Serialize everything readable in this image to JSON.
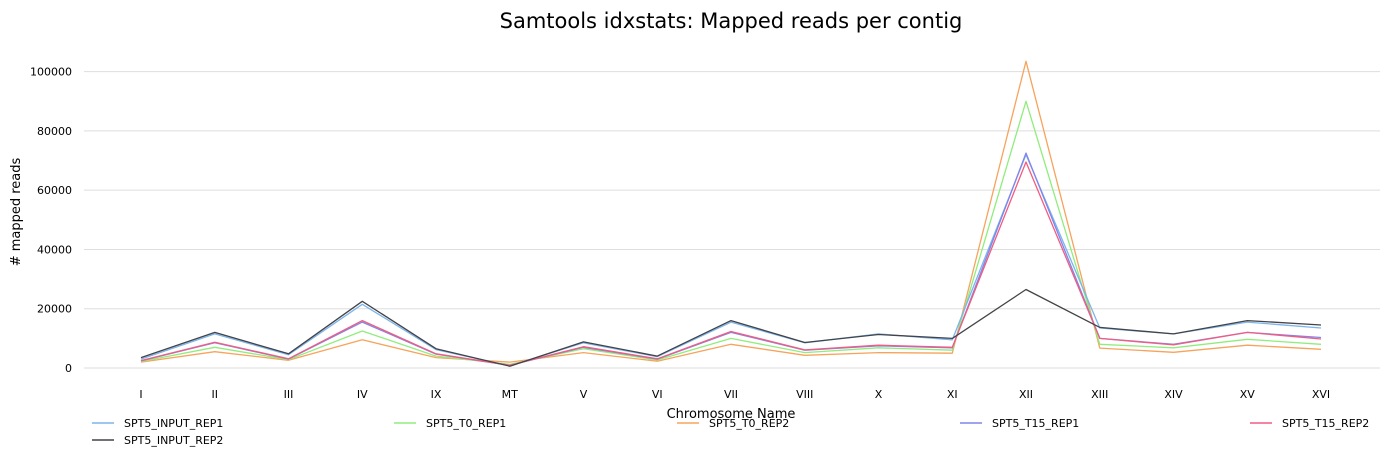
{
  "chart_data": {
    "type": "line",
    "title": "Samtools idxstats: Mapped reads per contig",
    "xlabel": "Chromosome Name",
    "ylabel": "# mapped reads",
    "ylim": [
      0,
      110000
    ],
    "yticks": [
      0,
      20000,
      40000,
      60000,
      80000,
      100000
    ],
    "ytick_labels": [
      "0",
      "20000",
      "40000",
      "60000",
      "80000",
      "100000"
    ],
    "grid": true,
    "legend_position": "bottom",
    "categories": [
      "I",
      "II",
      "III",
      "IV",
      "IX",
      "MT",
      "V",
      "VI",
      "VII",
      "VIII",
      "X",
      "XI",
      "XII",
      "XIII",
      "XIV",
      "XV",
      "XVI"
    ],
    "series": [
      {
        "name": "SPT5_INPUT_REP1",
        "color": "#7cb5ec",
        "values": [
          3000,
          11500,
          4500,
          21500,
          6200,
          700,
          8500,
          3800,
          15500,
          8500,
          11500,
          9500,
          72000,
          13500,
          11500,
          15500,
          13500
        ]
      },
      {
        "name": "SPT5_INPUT_REP2",
        "color": "#434348",
        "values": [
          3500,
          12000,
          4800,
          22500,
          6500,
          600,
          8800,
          4000,
          16000,
          8600,
          11300,
          10000,
          26500,
          13700,
          11500,
          16000,
          14500
        ]
      },
      {
        "name": "SPT5_T0_REP1",
        "color": "#90ed7d",
        "values": [
          2200,
          7000,
          2800,
          12500,
          4000,
          1200,
          6500,
          2700,
          10000,
          5200,
          6800,
          6000,
          90000,
          8000,
          6800,
          9700,
          8000
        ]
      },
      {
        "name": "SPT5_T0_REP2",
        "color": "#f7a35c",
        "values": [
          2000,
          5500,
          2600,
          9500,
          3500,
          2000,
          5200,
          2300,
          8000,
          4300,
          5200,
          5000,
          103500,
          6700,
          5300,
          7700,
          6300
        ]
      },
      {
        "name": "SPT5_T15_REP1",
        "color": "#8085e9",
        "values": [
          2400,
          8500,
          3000,
          15500,
          4700,
          900,
          7000,
          3000,
          12000,
          6000,
          7500,
          6800,
          72500,
          10000,
          8000,
          12000,
          10300
        ]
      },
      {
        "name": "SPT5_T15_REP2",
        "color": "#f15c80",
        "values": [
          2500,
          8700,
          3100,
          16000,
          4800,
          900,
          7200,
          3100,
          12300,
          6100,
          7700,
          7000,
          69500,
          10000,
          7800,
          12000,
          9800
        ]
      }
    ]
  }
}
